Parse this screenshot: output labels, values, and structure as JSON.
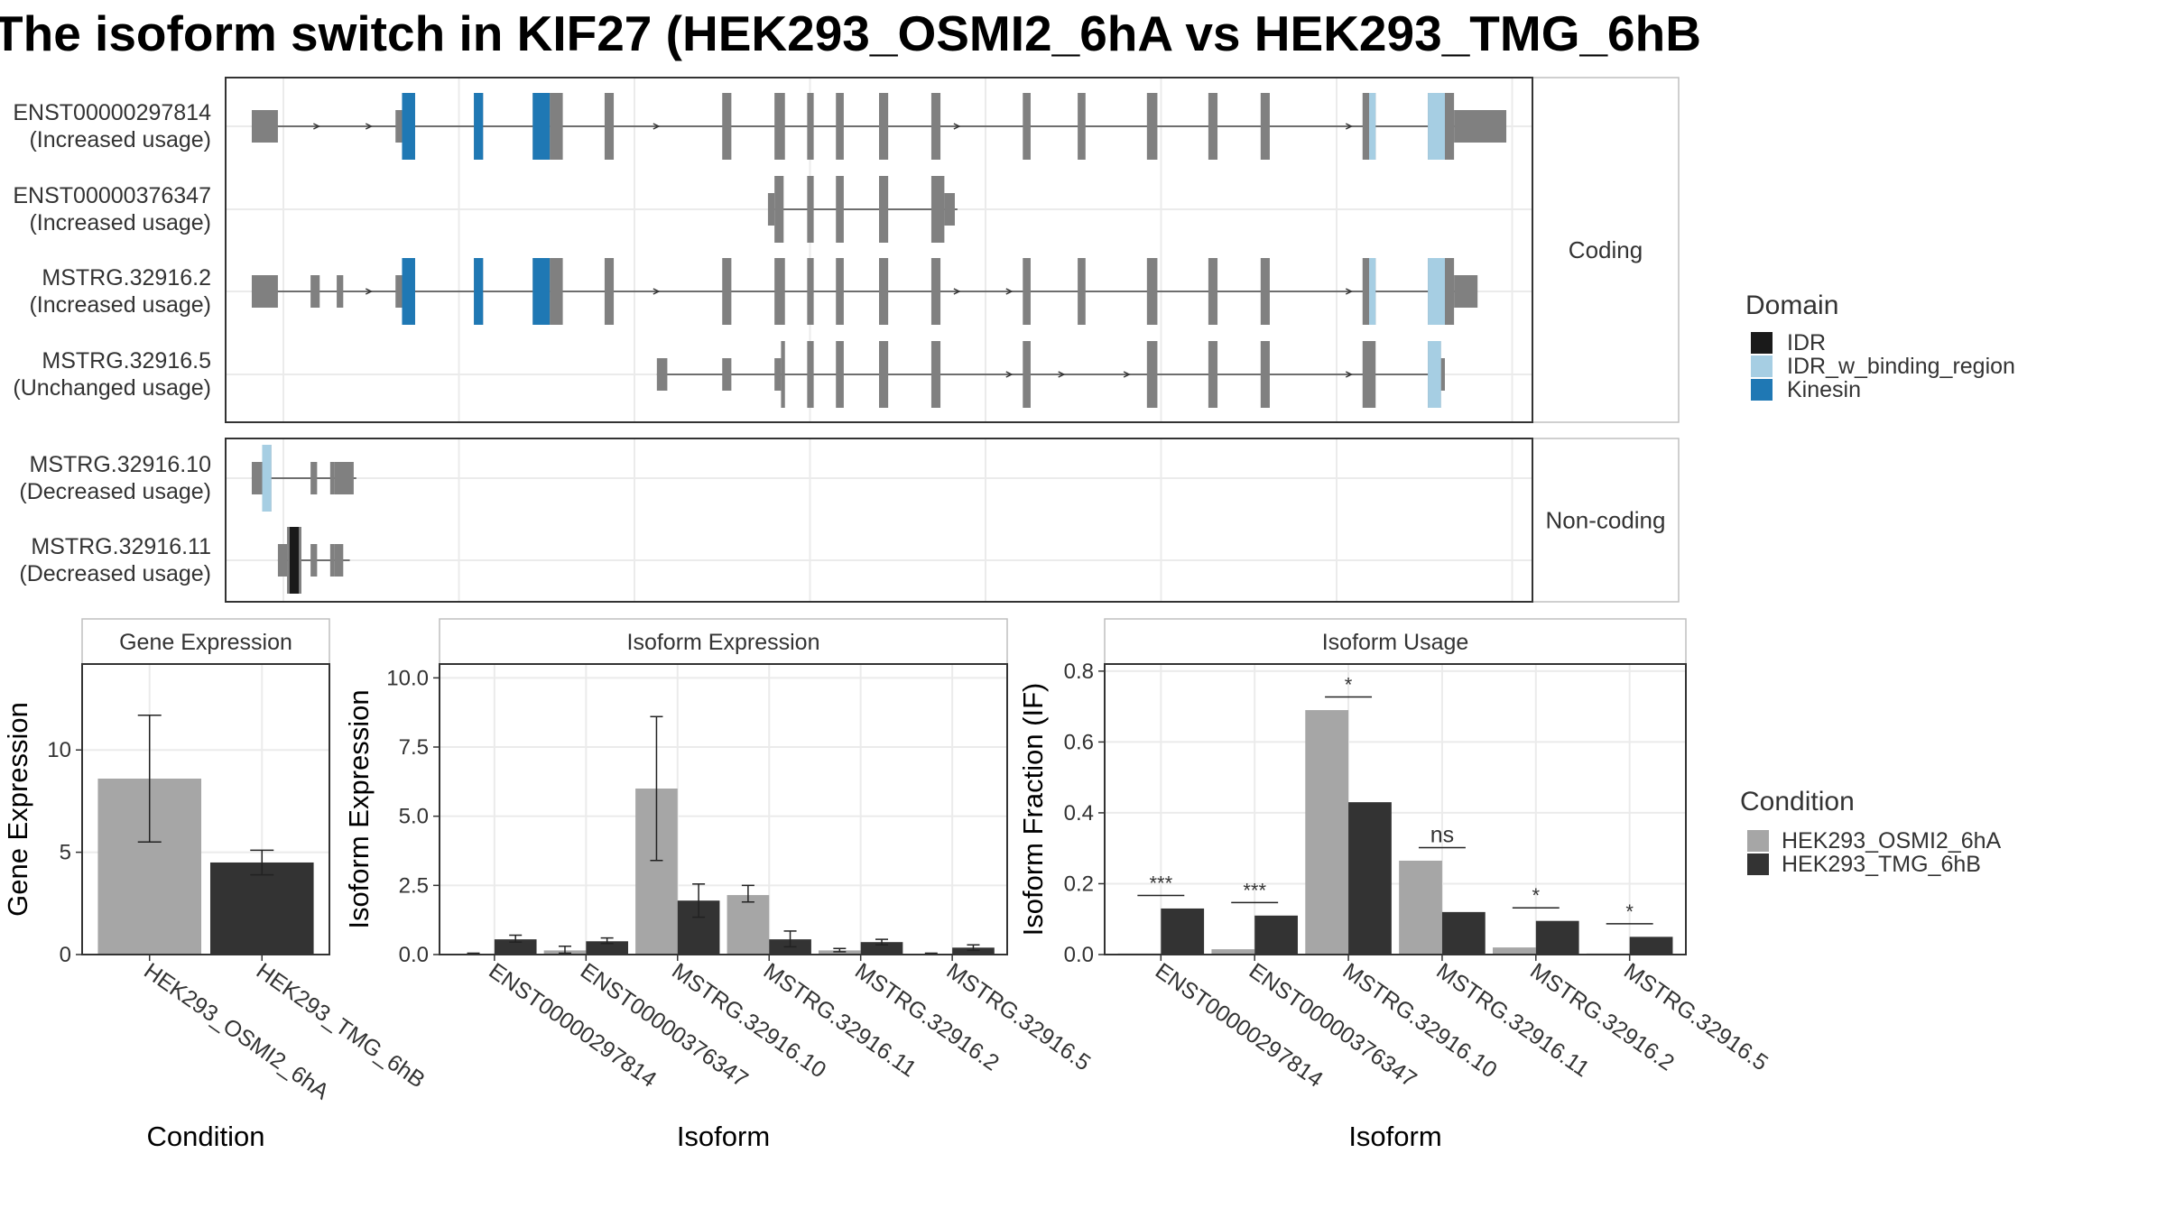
{
  "title": "The isoform switch in KIF27 (HEK293_OSMI2_6hA vs HEK293_TMG_6hB",
  "colors": {
    "exon": "#808080",
    "IDR": "#1a1a1a",
    "IDR_w_binding_region": "#a6cee3",
    "Kinesin": "#1f78b4",
    "cond1": "#a6a6a6",
    "cond2": "#333333"
  },
  "legends": {
    "domain": {
      "title": "Domain",
      "items": [
        {
          "label": "IDR",
          "color_key": "IDR"
        },
        {
          "label": "IDR_w_binding_region",
          "color_key": "IDR_w_binding_region"
        },
        {
          "label": "Kinesin",
          "color_key": "Kinesin"
        }
      ]
    },
    "condition": {
      "title": "Condition",
      "items": [
        {
          "label": "HEK293_OSMI2_6hA",
          "color_key": "cond1"
        },
        {
          "label": "HEK293_TMG_6hB",
          "color_key": "cond2"
        }
      ]
    }
  },
  "structure": {
    "strips": {
      "coding": "Coding",
      "noncoding": "Non-coding"
    },
    "transcripts": [
      {
        "group": "coding",
        "name": "ENST00000297814",
        "label2": "(Increased usage)",
        "start": 0.02,
        "end": 0.95,
        "exons": [
          [
            0.02,
            0.04,
            "u"
          ],
          [
            0.13,
            0.135,
            "u"
          ],
          [
            0.135,
            0.145,
            "c"
          ],
          [
            0.19,
            0.197,
            "c"
          ],
          [
            0.235,
            0.248,
            "c"
          ],
          [
            0.248,
            0.258,
            "c"
          ],
          [
            0.29,
            0.297,
            "c"
          ],
          [
            0.38,
            0.387,
            "c"
          ],
          [
            0.42,
            0.428,
            "c"
          ],
          [
            0.445,
            0.45,
            "c"
          ],
          [
            0.467,
            0.473,
            "c"
          ],
          [
            0.5,
            0.507,
            "c"
          ],
          [
            0.54,
            0.547,
            "c"
          ],
          [
            0.61,
            0.616,
            "c"
          ],
          [
            0.652,
            0.658,
            "c"
          ],
          [
            0.705,
            0.713,
            "c"
          ],
          [
            0.752,
            0.759,
            "c"
          ],
          [
            0.792,
            0.799,
            "c"
          ],
          [
            0.87,
            0.875,
            "c"
          ],
          [
            0.875,
            0.88,
            "c"
          ],
          [
            0.92,
            0.933,
            "c"
          ],
          [
            0.933,
            0.94,
            "c"
          ],
          [
            0.94,
            0.98,
            "u"
          ]
        ],
        "domains": [
          [
            0.135,
            0.145,
            "Kinesin"
          ],
          [
            0.19,
            0.197,
            "Kinesin"
          ],
          [
            0.235,
            0.248,
            "Kinesin"
          ],
          [
            0.875,
            0.88,
            "IDR_w_binding_region"
          ],
          [
            0.92,
            0.933,
            "IDR_w_binding_region"
          ]
        ],
        "arrows": [
          0.07,
          0.11,
          0.33,
          0.56,
          0.86
        ]
      },
      {
        "group": "coding",
        "name": "ENST00000376347",
        "label2": "(Increased usage)",
        "start": 0.42,
        "end": 0.56,
        "exons": [
          [
            0.415,
            0.42,
            "u"
          ],
          [
            0.42,
            0.427,
            "c"
          ],
          [
            0.445,
            0.45,
            "c"
          ],
          [
            0.467,
            0.473,
            "c"
          ],
          [
            0.5,
            0.507,
            "c"
          ],
          [
            0.54,
            0.55,
            "c"
          ],
          [
            0.55,
            0.558,
            "u"
          ]
        ],
        "domains": [],
        "arrows": []
      },
      {
        "group": "coding",
        "name": "MSTRG.32916.2",
        "label2": "(Increased usage)",
        "start": 0.02,
        "end": 0.95,
        "exons": [
          [
            0.02,
            0.04,
            "u"
          ],
          [
            0.065,
            0.072,
            "u"
          ],
          [
            0.085,
            0.09,
            "u"
          ],
          [
            0.13,
            0.135,
            "u"
          ],
          [
            0.135,
            0.145,
            "c"
          ],
          [
            0.19,
            0.197,
            "c"
          ],
          [
            0.235,
            0.248,
            "c"
          ],
          [
            0.248,
            0.258,
            "c"
          ],
          [
            0.29,
            0.297,
            "c"
          ],
          [
            0.38,
            0.387,
            "c"
          ],
          [
            0.42,
            0.428,
            "c"
          ],
          [
            0.445,
            0.45,
            "c"
          ],
          [
            0.467,
            0.473,
            "c"
          ],
          [
            0.5,
            0.507,
            "c"
          ],
          [
            0.54,
            0.547,
            "c"
          ],
          [
            0.61,
            0.616,
            "c"
          ],
          [
            0.652,
            0.658,
            "c"
          ],
          [
            0.705,
            0.713,
            "c"
          ],
          [
            0.752,
            0.759,
            "c"
          ],
          [
            0.792,
            0.799,
            "c"
          ],
          [
            0.87,
            0.875,
            "c"
          ],
          [
            0.875,
            0.88,
            "c"
          ],
          [
            0.92,
            0.933,
            "c"
          ],
          [
            0.933,
            0.94,
            "c"
          ],
          [
            0.94,
            0.958,
            "u"
          ]
        ],
        "domains": [
          [
            0.135,
            0.145,
            "Kinesin"
          ],
          [
            0.19,
            0.197,
            "Kinesin"
          ],
          [
            0.235,
            0.248,
            "Kinesin"
          ],
          [
            0.875,
            0.88,
            "IDR_w_binding_region"
          ],
          [
            0.92,
            0.933,
            "IDR_w_binding_region"
          ]
        ],
        "arrows": [
          0.11,
          0.33,
          0.56,
          0.6,
          0.86
        ]
      },
      {
        "group": "coding",
        "name": "MSTRG.32916.5",
        "label2": "(Unchanged usage)",
        "start": 0.33,
        "end": 0.93,
        "exons": [
          [
            0.33,
            0.338,
            "u"
          ],
          [
            0.38,
            0.387,
            "u"
          ],
          [
            0.42,
            0.425,
            "u"
          ],
          [
            0.425,
            0.428,
            "c"
          ],
          [
            0.445,
            0.45,
            "c"
          ],
          [
            0.467,
            0.473,
            "c"
          ],
          [
            0.5,
            0.507,
            "c"
          ],
          [
            0.54,
            0.547,
            "c"
          ],
          [
            0.61,
            0.616,
            "c"
          ],
          [
            0.705,
            0.713,
            "c"
          ],
          [
            0.752,
            0.759,
            "c"
          ],
          [
            0.792,
            0.799,
            "c"
          ],
          [
            0.87,
            0.88,
            "c"
          ],
          [
            0.92,
            0.93,
            "c"
          ],
          [
            0.93,
            0.933,
            "u"
          ]
        ],
        "domains": [
          [
            0.92,
            0.93,
            "IDR_w_binding_region"
          ]
        ],
        "arrows": [
          0.6,
          0.64,
          0.69,
          0.86
        ]
      },
      {
        "group": "noncoding",
        "name": "MSTRG.32916.10",
        "label2": "(Decreased usage)",
        "start": 0.02,
        "end": 0.1,
        "exons": [
          [
            0.02,
            0.028,
            "u"
          ],
          [
            0.028,
            0.035,
            "c"
          ],
          [
            0.065,
            0.07,
            "u"
          ],
          [
            0.08,
            0.083,
            "u"
          ],
          [
            0.083,
            0.098,
            "u"
          ]
        ],
        "domains": [
          [
            0.028,
            0.035,
            "IDR_w_binding_region"
          ]
        ],
        "arrows": []
      },
      {
        "group": "noncoding",
        "name": "MSTRG.32916.11",
        "label2": "(Decreased usage)",
        "start": 0.04,
        "end": 0.095,
        "exons": [
          [
            0.04,
            0.047,
            "u"
          ],
          [
            0.047,
            0.058,
            "c"
          ],
          [
            0.065,
            0.07,
            "u"
          ],
          [
            0.08,
            0.083,
            "u"
          ],
          [
            0.083,
            0.09,
            "u"
          ]
        ],
        "domains": [
          [
            0.049,
            0.056,
            "IDR"
          ]
        ],
        "arrows": []
      }
    ]
  },
  "chart_data": [
    {
      "type": "bar",
      "title": "Gene Expression",
      "xlabel": "Condition",
      "ylabel": "Gene Expression",
      "categories": [
        "HEK293_OSMI2_6hA",
        "HEK293_TMG_6hB"
      ],
      "values": [
        8.6,
        4.5
      ],
      "err_low": [
        5.5,
        3.9
      ],
      "err_high": [
        11.7,
        5.1
      ],
      "ylim": [
        0,
        14.2
      ],
      "yticks": [
        0,
        5,
        10
      ]
    },
    {
      "type": "bar",
      "title": "Isoform Expression",
      "xlabel": "Isoform",
      "ylabel": "Isoform Expression",
      "categories": [
        "ENST00000297814",
        "ENST00000376347",
        "MSTRG.32916.10",
        "MSTRG.32916.11",
        "MSTRG.32916.2",
        "MSTRG.32916.5"
      ],
      "series": [
        {
          "name": "HEK293_OSMI2_6hA",
          "values": [
            0.02,
            0.15,
            6.0,
            2.15,
            0.15,
            0.02
          ],
          "err_low": [
            0.0,
            0.05,
            3.4,
            1.9,
            0.1,
            0.0
          ],
          "err_high": [
            0.05,
            0.3,
            8.6,
            2.5,
            0.22,
            0.05
          ]
        },
        {
          "name": "HEK293_TMG_6hB",
          "values": [
            0.55,
            0.48,
            1.95,
            0.55,
            0.45,
            0.25
          ],
          "err_low": [
            0.45,
            0.4,
            1.35,
            0.28,
            0.35,
            0.15
          ],
          "err_high": [
            0.7,
            0.6,
            2.55,
            0.85,
            0.55,
            0.35
          ]
        }
      ],
      "ylim": [
        0,
        10.5
      ],
      "yticks": [
        0.0,
        2.5,
        5.0,
        7.5,
        10.0
      ],
      "ytick_labels": [
        "0.0",
        "2.5",
        "5.0",
        "7.5",
        "10.0"
      ]
    },
    {
      "type": "bar",
      "title": "Isoform Usage",
      "xlabel": "Isoform",
      "ylabel": "Isoform Fraction (IF)",
      "categories": [
        "ENST00000297814",
        "ENST00000376347",
        "MSTRG.32916.10",
        "MSTRG.32916.11",
        "MSTRG.32916.2",
        "MSTRG.32916.5"
      ],
      "series": [
        {
          "name": "HEK293_OSMI2_6hA",
          "values": [
            0.003,
            0.015,
            0.69,
            0.265,
            0.02,
            0.003
          ]
        },
        {
          "name": "HEK293_TMG_6hB",
          "values": [
            0.13,
            0.11,
            0.43,
            0.12,
            0.095,
            0.05
          ]
        }
      ],
      "significance": [
        "***",
        "***",
        "*",
        "ns",
        "*",
        "*"
      ],
      "ylim": [
        0,
        0.82
      ],
      "yticks": [
        0.0,
        0.2,
        0.4,
        0.6,
        0.8
      ],
      "ytick_labels": [
        "0.0",
        "0.2",
        "0.4",
        "0.6",
        "0.8"
      ]
    }
  ]
}
